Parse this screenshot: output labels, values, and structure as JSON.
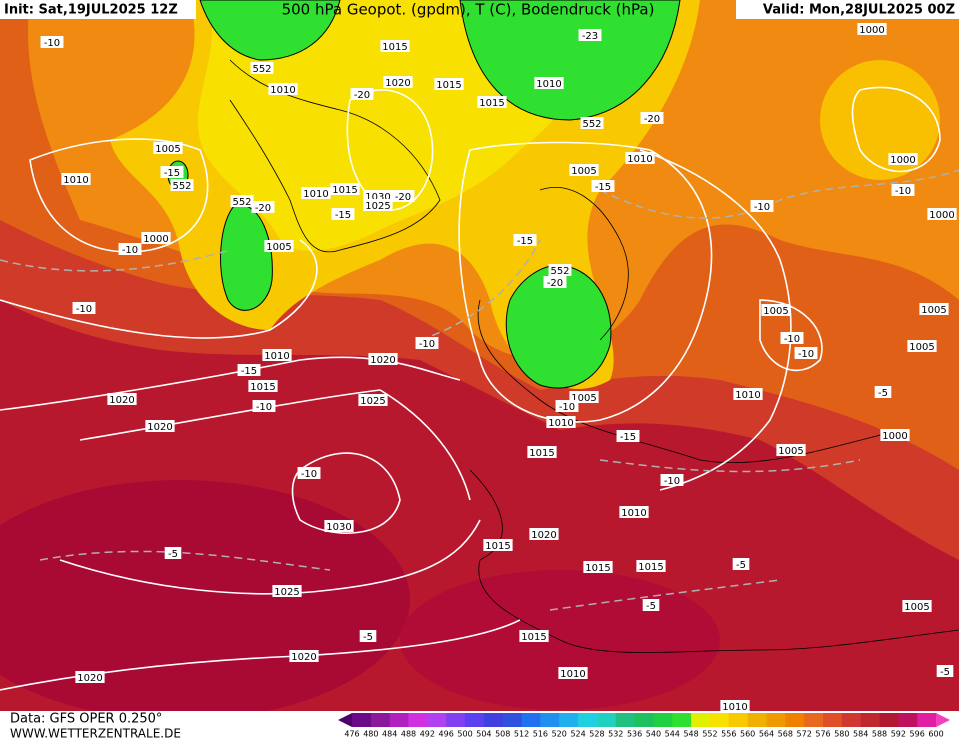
{
  "header": {
    "init": "Init: Sat,19JUL2025 12Z",
    "title": "500 hPa Geopot. (gpdm), T (C), Bodendruck (hPa)",
    "valid": "Valid: Mon,28JUL2025 00Z"
  },
  "footer": {
    "data": "Data: GFS OPER 0.250°",
    "site": "WWW.WETTERZENTRALE.DE"
  },
  "scale": [
    "476",
    "480",
    "484",
    "488",
    "492",
    "496",
    "500",
    "504",
    "508",
    "512",
    "516",
    "520",
    "524",
    "528",
    "532",
    "536",
    "540",
    "544",
    "548",
    "552",
    "556",
    "560",
    "564",
    "568",
    "572",
    "576",
    "580",
    "584",
    "588",
    "592",
    "596",
    "600"
  ],
  "map_labels": [
    "-10",
    "1015",
    "552",
    "1010",
    "1020",
    "1015",
    "-20",
    "-23",
    "1010",
    "1015",
    "552",
    "-20",
    "1000",
    "1005",
    "-15",
    "552",
    "1010",
    "1010",
    "1005",
    "-15",
    "1000",
    "-10",
    "-10",
    "1000",
    "1010",
    "1015",
    "1030",
    "-20",
    "1025",
    "-15",
    "552",
    "-20",
    "-15",
    "1000",
    "-10",
    "1005",
    "552",
    "-20",
    "-10",
    "1005",
    "1005",
    "-10",
    "-10",
    "1005",
    "-10",
    "1010",
    "1020",
    "-15",
    "1015",
    "1010",
    "-5",
    "1005",
    "1020",
    "1025",
    "-10",
    "-10",
    "1010",
    "1020",
    "-15",
    "1000",
    "1015",
    "1005",
    "-10",
    "-10",
    "1010",
    "1030",
    "1020",
    "1015",
    "-5",
    "-5",
    "1015",
    "1015",
    "1025",
    "-5",
    "1005",
    "-5",
    "1015",
    "1020",
    "1020",
    "1010",
    "-5",
    "1010"
  ]
}
